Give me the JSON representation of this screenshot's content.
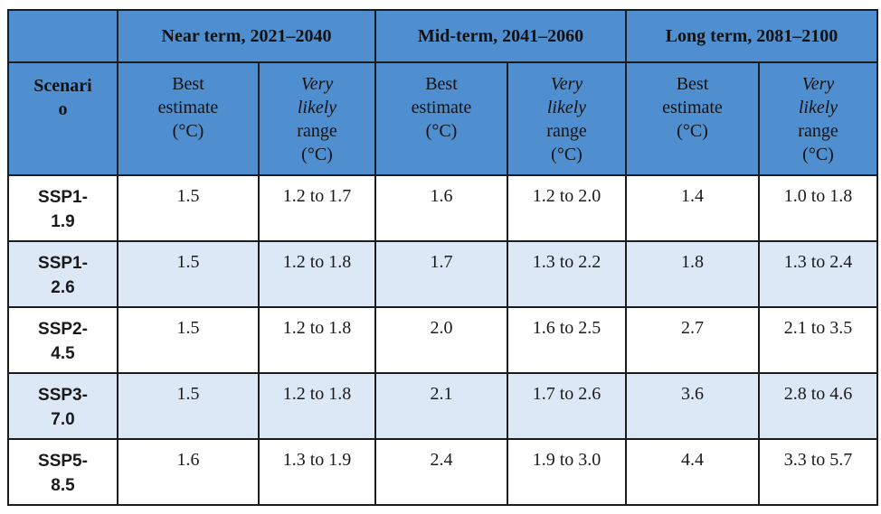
{
  "header": {
    "periods": [
      {
        "label": "Near term, 2021–2040"
      },
      {
        "label": "Mid-term, 2041–2060"
      },
      {
        "label": "Long term, 2081–2100"
      }
    ],
    "scenario_label": {
      "line1": "Scenari",
      "line2": "o"
    },
    "best_estimate": {
      "line1": "Best",
      "line2": "estimate",
      "line3": "(°C)"
    },
    "likely_range": {
      "line1": "Very",
      "line2": "likely",
      "line3": "range",
      "line4": "(°C)"
    }
  },
  "rows": [
    {
      "scenario": {
        "line1": "SSP1-",
        "line2": "1.9"
      },
      "near_best": "1.5",
      "near_range": "1.2 to 1.7",
      "mid_best": "1.6",
      "mid_range": "1.2 to 2.0",
      "long_best": "1.4",
      "long_range": "1.0 to 1.8"
    },
    {
      "scenario": {
        "line1": "SSP1-",
        "line2": "2.6"
      },
      "near_best": "1.5",
      "near_range": "1.2 to 1.8",
      "mid_best": "1.7",
      "mid_range": "1.3 to 2.2",
      "long_best": "1.8",
      "long_range": "1.3 to 2.4"
    },
    {
      "scenario": {
        "line1": "SSP2-",
        "line2": "4.5"
      },
      "near_best": "1.5",
      "near_range": "1.2 to 1.8",
      "mid_best": "2.0",
      "mid_range": "1.6 to 2.5",
      "long_best": "2.7",
      "long_range": "2.1 to 3.5"
    },
    {
      "scenario": {
        "line1": "SSP3-",
        "line2": "7.0"
      },
      "near_best": "1.5",
      "near_range": "1.2 to 1.8",
      "mid_best": "2.1",
      "mid_range": "1.7 to 2.6",
      "long_best": "3.6",
      "long_range": "2.8 to 4.6"
    },
    {
      "scenario": {
        "line1": "SSP5-",
        "line2": "8.5"
      },
      "near_best": "1.6",
      "near_range": "1.3 to 1.9",
      "mid_best": "2.4",
      "mid_range": "1.9 to 3.0",
      "long_best": "4.4",
      "long_range": "3.3 to 5.7"
    }
  ],
  "colors": {
    "header_blue": "#4f8fcf",
    "row_band_blue": "#dce8f6",
    "border": "#1c1c1c"
  }
}
